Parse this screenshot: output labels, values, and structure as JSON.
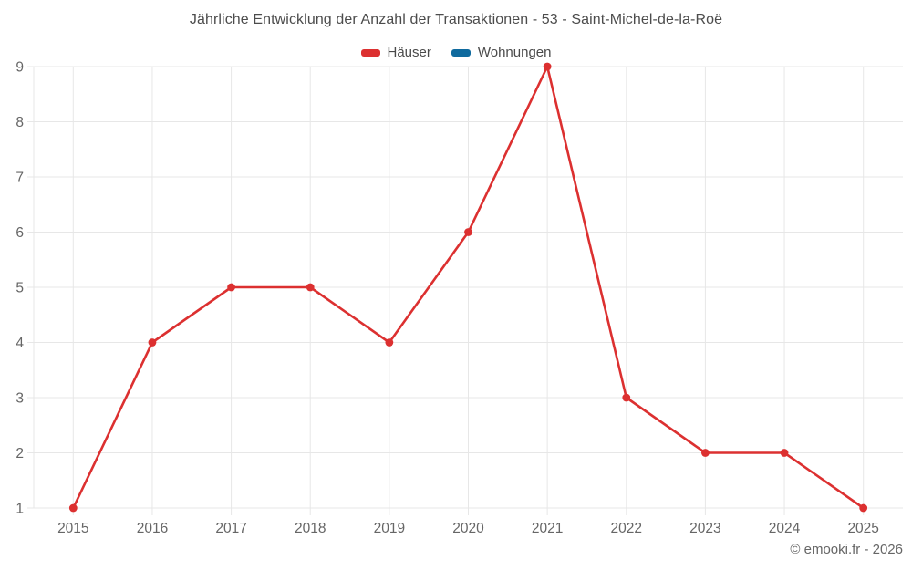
{
  "title": "Jährliche Entwicklung der Anzahl der Transaktionen - 53 - Saint-Michel-de-la-Roë",
  "legend": {
    "items": [
      {
        "label": "Häuser",
        "color": "#dc3030"
      },
      {
        "label": "Wohnungen",
        "color": "#0f6a9e"
      }
    ]
  },
  "footer": {
    "credit": "© emooki.fr - 2026"
  },
  "colors": {
    "background": "#ffffff",
    "grid": "#e7e7e7",
    "axis_label": "#666666",
    "title_text": "#4c4c4c",
    "legend_text": "#4a4a4a",
    "footer_text": "#666666"
  },
  "chart_data": {
    "type": "line",
    "title": "Jährliche Entwicklung der Anzahl der Transaktionen - 53 - Saint-Michel-de-la-Roë",
    "categories": [
      "2015",
      "2016",
      "2017",
      "2018",
      "2019",
      "2020",
      "2021",
      "2022",
      "2023",
      "2024",
      "2025"
    ],
    "series": [
      {
        "name": "Häuser",
        "color": "#dc3030",
        "values": [
          1,
          4,
          5,
          5,
          4,
          6,
          9,
          3,
          2,
          2,
          1
        ]
      },
      {
        "name": "Wohnungen",
        "color": "#0f6a9e",
        "values": []
      }
    ],
    "xlabel": "",
    "ylabel": "",
    "ylim": [
      1,
      9
    ],
    "yticks": [
      1,
      2,
      3,
      4,
      5,
      6,
      7,
      8,
      9
    ],
    "grid": true,
    "legend_position": "top",
    "marker": "circle"
  }
}
